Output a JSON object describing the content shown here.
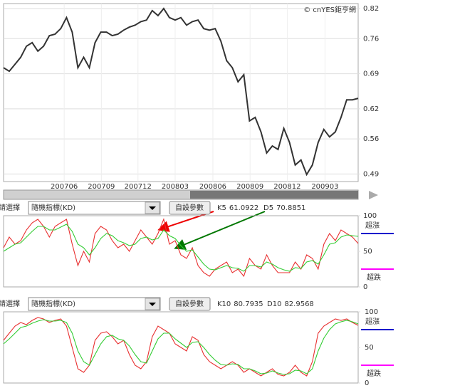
{
  "chart_data": [
    {
      "type": "line",
      "watermark": "© cnYES鉅亨網",
      "series": [
        {
          "name": null,
          "color": "#333333",
          "values": [
            0.702,
            0.695,
            0.709,
            0.723,
            0.745,
            0.752,
            0.735,
            0.745,
            0.766,
            0.769,
            0.78,
            0.802,
            0.773,
            0.702,
            0.723,
            0.702,
            0.752,
            0.773,
            0.773,
            0.766,
            0.769,
            0.777,
            0.783,
            0.787,
            0.794,
            0.797,
            0.816,
            0.806,
            0.82,
            0.802,
            0.797,
            0.802,
            0.787,
            0.794,
            0.797,
            0.78,
            0.777,
            0.78,
            0.755,
            0.716,
            0.702,
            0.674,
            0.688,
            0.596,
            0.603,
            0.574,
            0.532,
            0.546,
            0.539,
            0.581,
            0.553,
            0.508,
            0.518,
            0.489,
            0.508,
            0.553,
            0.579,
            0.564,
            0.574,
            0.603,
            0.638,
            0.638,
            0.641
          ]
        }
      ],
      "xlim": [
        0,
        62
      ],
      "xticks": [
        {
          "value": 10.6,
          "label": "200706"
        },
        {
          "value": 17.1,
          "label": "200709"
        },
        {
          "value": 23.5,
          "label": "200712"
        },
        {
          "value": 30,
          "label": "200803"
        },
        {
          "value": 36.6,
          "label": "200806"
        },
        {
          "value": 43.1,
          "label": "200809"
        },
        {
          "value": 49.6,
          "label": "200812"
        },
        {
          "value": 56.2,
          "label": "200903"
        }
      ],
      "ylim": [
        0.475,
        0.83
      ],
      "yticks": [
        0.49,
        0.56,
        0.62,
        0.69,
        0.76,
        0.82
      ],
      "grid": true
    },
    {
      "type": "line",
      "selector_label": "請選擇",
      "indicator": "隨機指標(KD)",
      "button": "自設參數",
      "annotations": [
        "超漲",
        "超跌"
      ],
      "series": [
        {
          "name": "K5",
          "current": 61.0922,
          "color": "#e83030",
          "values": [
            55,
            70,
            60,
            65,
            80,
            90,
            95,
            85,
            70,
            85,
            90,
            95,
            60,
            30,
            50,
            35,
            75,
            85,
            80,
            65,
            55,
            60,
            50,
            65,
            80,
            70,
            60,
            75,
            95,
            60,
            65,
            45,
            40,
            55,
            30,
            20,
            15,
            25,
            30,
            35,
            20,
            25,
            15,
            40,
            30,
            25,
            45,
            30,
            20,
            20,
            20,
            35,
            25,
            45,
            40,
            25,
            60,
            75,
            65,
            80,
            75,
            70,
            61
          ]
        },
        {
          "name": "D5",
          "current": 70.8851,
          "color": "#33cc33",
          "values": [
            50,
            55,
            60,
            62,
            70,
            78,
            85,
            85,
            80,
            80,
            84,
            88,
            78,
            60,
            55,
            45,
            55,
            68,
            75,
            72,
            65,
            62,
            58,
            60,
            68,
            70,
            66,
            68,
            80,
            72,
            68,
            58,
            50,
            52,
            42,
            32,
            25,
            24,
            27,
            30,
            27,
            26,
            22,
            30,
            30,
            28,
            35,
            32,
            27,
            24,
            22,
            27,
            26,
            35,
            37,
            32,
            45,
            60,
            62,
            70,
            73,
            72,
            71
          ]
        }
      ],
      "ylim": [
        0,
        100
      ],
      "yticks": [
        0,
        50,
        100
      ],
      "grid": false
    },
    {
      "type": "line",
      "selector_label": "請選擇",
      "indicator": "隨機指標(KD)",
      "button": "自設參數",
      "annotations": [
        "超漲",
        "超跌"
      ],
      "series": [
        {
          "name": "K10",
          "current": 80.7935,
          "color": "#e83030",
          "values": [
            60,
            70,
            80,
            85,
            82,
            88,
            92,
            90,
            85,
            88,
            90,
            80,
            50,
            20,
            15,
            25,
            60,
            70,
            72,
            65,
            55,
            60,
            40,
            25,
            20,
            30,
            65,
            80,
            75,
            70,
            55,
            50,
            45,
            65,
            60,
            40,
            30,
            25,
            20,
            25,
            30,
            25,
            15,
            20,
            15,
            10,
            15,
            20,
            12,
            10,
            15,
            25,
            15,
            10,
            30,
            70,
            80,
            85,
            90,
            88,
            90,
            85,
            81
          ]
        },
        {
          "name": "D10",
          "current": 82.9568,
          "color": "#33cc33",
          "values": [
            55,
            62,
            70,
            78,
            80,
            84,
            87,
            89,
            87,
            87,
            88,
            85,
            70,
            45,
            30,
            25,
            40,
            55,
            65,
            67,
            62,
            60,
            52,
            40,
            30,
            28,
            45,
            62,
            70,
            70,
            62,
            56,
            50,
            57,
            58,
            50,
            40,
            32,
            26,
            25,
            27,
            26,
            20,
            20,
            17,
            13,
            14,
            17,
            14,
            12,
            13,
            18,
            17,
            13,
            20,
            45,
            63,
            75,
            83,
            86,
            88,
            86,
            83
          ]
        }
      ],
      "ylim": [
        0,
        100
      ],
      "yticks": [
        0,
        50,
        100
      ],
      "grid": false
    }
  ]
}
